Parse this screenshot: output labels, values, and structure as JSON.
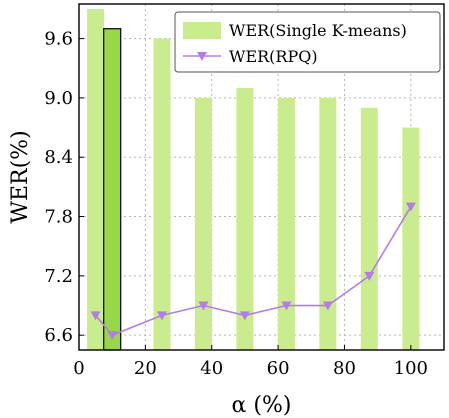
{
  "chart_data": {
    "type": "bar",
    "xlabel": "α (%)",
    "ylabel": "WER(%)",
    "xlim": [
      0,
      110
    ],
    "ylim": [
      6.45,
      9.95
    ],
    "xticks": [
      0,
      20,
      40,
      60,
      80,
      100
    ],
    "yticks": [
      6.6,
      7.2,
      7.8,
      8.4,
      9.0,
      9.6
    ],
    "ytick_labels": [
      "6.6",
      "7.2",
      "7.8",
      "8.4",
      "9.0",
      "9.6"
    ],
    "grid": true,
    "legend_position": "top-right",
    "series": [
      {
        "name": "WER(Single K-means)",
        "kind": "bar",
        "color": "#c8ec8e",
        "x": [
          5,
          10,
          25,
          37.5,
          50,
          62.5,
          75,
          87.5,
          100
        ],
        "values": [
          9.9,
          9.7,
          9.6,
          9.0,
          9.1,
          9.0,
          9.0,
          8.9,
          8.7
        ],
        "highlight_index": 1,
        "highlight_color": "#98d64a"
      },
      {
        "name": "WER(RPQ)",
        "kind": "line",
        "color": "#b67be8",
        "marker": "triangle-down",
        "x": [
          5,
          10,
          25,
          37.5,
          50,
          62.5,
          75,
          87.5,
          100
        ],
        "values": [
          6.8,
          6.6,
          6.8,
          6.9,
          6.8,
          6.9,
          6.9,
          7.2,
          7.9
        ]
      }
    ]
  }
}
